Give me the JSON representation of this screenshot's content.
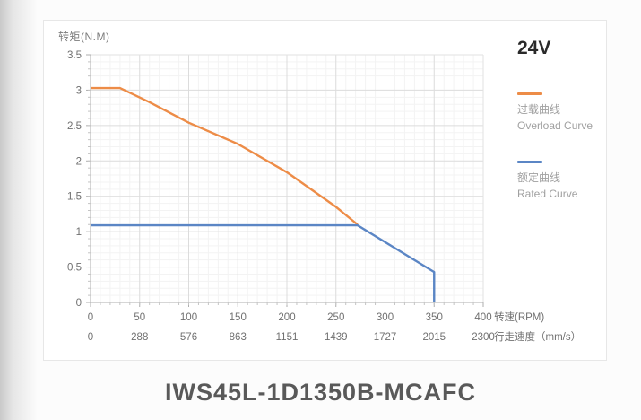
{
  "page": {
    "model_title": "IWS45L-1D1350B-MCAFC"
  },
  "chart_data": {
    "type": "line",
    "title": "24V",
    "y_axis": {
      "label": "转矩(N.M)",
      "min": 0,
      "max": 3.5,
      "major_step": 0.5,
      "minor_step": 0.1,
      "ticks": [
        "3.5",
        "3",
        "2.5",
        "2",
        "1.5",
        "1",
        "0.5",
        "0"
      ]
    },
    "x_axis_rpm": {
      "label": "转速(RPM)",
      "min": 0,
      "max": 400,
      "major_step": 50,
      "minor_step": 10,
      "ticks": [
        0,
        50,
        100,
        150,
        200,
        250,
        300,
        350,
        400
      ]
    },
    "x_axis_speed": {
      "label": "行走速度（mm/s）",
      "ticks": [
        0,
        288,
        576,
        863,
        1151,
        1439,
        1727,
        2015,
        2300
      ]
    },
    "series": [
      {
        "name_zh": "过载曲线",
        "name_en": "Overload Curve",
        "color": "#ED8C47",
        "points": [
          [
            0,
            3.03
          ],
          [
            30,
            3.03
          ],
          [
            60,
            2.83
          ],
          [
            100,
            2.54
          ],
          [
            150,
            2.24
          ],
          [
            200,
            1.84
          ],
          [
            250,
            1.35
          ],
          [
            272,
            1.1
          ]
        ]
      },
      {
        "name_zh": "额定曲线",
        "name_en": "Rated Curve",
        "color": "#5B86C5",
        "points": [
          [
            0,
            1.09
          ],
          [
            272,
            1.09
          ],
          [
            350,
            0.43
          ],
          [
            350,
            0
          ]
        ]
      }
    ],
    "grid": {
      "major_color": "#dcdcdc",
      "minor_color": "#f3f3f3",
      "axis_color": "#aeaeae",
      "border_color": "#e2e2e2",
      "tick_label_color": "#707070"
    },
    "legend_position": "right"
  }
}
